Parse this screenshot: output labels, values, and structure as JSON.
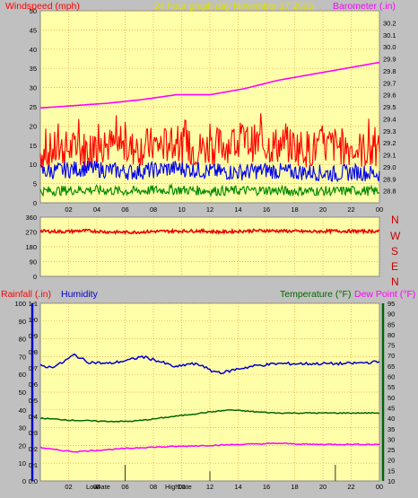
{
  "colors": {
    "background": "#c0c0c0",
    "plot_bg": "#ffffaa",
    "grid": "#e0a030",
    "windspeed": "#ff0000",
    "gust_red": "#ff0000",
    "wind_avg": "#0000ee",
    "wind_low": "#008800",
    "barometer": "#ff00ff",
    "title": "#e0e000",
    "humidity": "#0000cc",
    "temperature": "#006600",
    "dewpoint": "#ff00ff",
    "direction": "#ee0000"
  },
  "header": {
    "windspeed_label": "Windspeed (mph)",
    "title": "24 hour graph day   November 17 2025",
    "barometer_label": "Barometer (.in)"
  },
  "lower_header": {
    "rainfall_label": "Rainfall (.in)",
    "humidity_label": "Humidity",
    "temperature_label": "Temperature (°F)",
    "dewpoint_label": "Dew Point (°F)"
  },
  "x_axis_ticks": [
    "02",
    "04",
    "06",
    "08",
    "10",
    "12",
    "14",
    "16",
    "18",
    "20",
    "22",
    "00"
  ],
  "wind_dir_letters": [
    "N",
    "W",
    "S",
    "E",
    "N"
  ],
  "low_high_labels": {
    "low": "Low",
    "low_time": "Date",
    "high": "High",
    "high_time": "Date"
  },
  "chart_data": [
    {
      "type": "line",
      "name": "wind-and-barometer",
      "x_ticks": [
        "02",
        "04",
        "06",
        "08",
        "10",
        "12",
        "14",
        "16",
        "18",
        "20",
        "22",
        "00"
      ],
      "left_axis": {
        "label": "Windspeed (mph)",
        "ylim": [
          0,
          50
        ],
        "ticks": [
          0,
          5,
          10,
          15,
          20,
          25,
          30,
          35,
          40,
          45,
          50
        ]
      },
      "right_axis": {
        "label": "Barometer (.in)",
        "ylim": [
          28.7,
          30.3
        ],
        "ticks": [
          28.8,
          28.9,
          29.0,
          29.1,
          29.2,
          29.3,
          29.4,
          29.5,
          29.6,
          29.7,
          29.8,
          29.9,
          30.0,
          30.1,
          30.2
        ]
      },
      "series": [
        {
          "name": "Windspeed (mph)",
          "axis": "left",
          "style": "noisy",
          "values": [
            13,
            14,
            14,
            15,
            14,
            15,
            15,
            14,
            15,
            16,
            15,
            15,
            14,
            15,
            14,
            13
          ]
        },
        {
          "axis": "left",
          "style": "noisy",
          "values": [
            8,
            8.5,
            9,
            8.5,
            8,
            8.5,
            9,
            8.5,
            8,
            8,
            8.5,
            8,
            8,
            7.5,
            8,
            7.5
          ]
        },
        {
          "axis": "left",
          "style": "noisy",
          "values": [
            3,
            3.2,
            3.4,
            3.2,
            3,
            3.3,
            3.4,
            3.2,
            3.1,
            3.2,
            3.3,
            3,
            3.1,
            3,
            3.2,
            3
          ]
        },
        {
          "name": "Barometer (.in)",
          "axis": "right",
          "style": "smooth",
          "x_frac": [
            0.0,
            0.1,
            0.2,
            0.3,
            0.4,
            0.5,
            0.6,
            0.7,
            0.8,
            0.9,
            1.0
          ],
          "values": [
            29.49,
            29.51,
            29.53,
            29.56,
            29.6,
            29.6,
            29.65,
            29.72,
            29.77,
            29.82,
            29.87
          ]
        }
      ]
    },
    {
      "type": "scatter",
      "name": "wind-direction",
      "ylim": [
        0,
        360
      ],
      "ticks": [
        0,
        90,
        180,
        270,
        360
      ],
      "series": [
        {
          "style": "noisy",
          "values": [
            275,
            272,
            278,
            270,
            268,
            273,
            275,
            277,
            270,
            276,
            278,
            275,
            272,
            276,
            274,
            275
          ]
        }
      ]
    },
    {
      "type": "line",
      "name": "humidity-temperature-dewpoint",
      "x_ticks": [
        "02",
        "04",
        "06",
        "08",
        "10",
        "12",
        "14",
        "16",
        "18",
        "20",
        "22",
        "00"
      ],
      "humidity_axis": {
        "label": "Humidity",
        "ylim": [
          0,
          100
        ],
        "ticks": [
          0,
          10,
          20,
          30,
          40,
          50,
          60,
          70,
          80,
          90,
          100
        ]
      },
      "rainfall_axis": {
        "label": "Rainfall (.in)",
        "ylim": [
          0,
          1.1
        ],
        "ticks": [
          0,
          0.1,
          0.2,
          0.3,
          0.4,
          0.5,
          0.6,
          0.7,
          0.8,
          0.9,
          1.0,
          1.1
        ]
      },
      "temperature_axis": {
        "label": "Temperature (°F)",
        "ylim": [
          10,
          95
        ],
        "ticks": [
          10,
          15,
          20,
          25,
          30,
          35,
          40,
          45,
          50,
          55,
          60,
          65,
          70,
          75,
          80,
          85,
          90,
          95
        ]
      },
      "series": [
        {
          "name": "Humidity",
          "axis": "humidity",
          "x_frac": [
            0,
            0.03,
            0.06,
            0.1,
            0.14,
            0.2,
            0.26,
            0.3,
            0.34,
            0.4,
            0.44,
            0.48,
            0.5,
            0.54,
            0.58,
            0.64,
            0.7,
            0.8,
            0.9,
            1.0
          ],
          "values": [
            65,
            64,
            66,
            71,
            67,
            66,
            68,
            70,
            68,
            64,
            66,
            65,
            62,
            61,
            63,
            65,
            66,
            66,
            66,
            67
          ]
        },
        {
          "name": "Temperature (°F)",
          "axis": "temperature",
          "x_frac": [
            0,
            0.1,
            0.2,
            0.26,
            0.3,
            0.4,
            0.5,
            0.56,
            0.6,
            0.64,
            0.7,
            0.8,
            0.9,
            1.0
          ],
          "values": [
            40,
            39,
            38.5,
            38.5,
            39,
            41,
            43,
            44,
            43.5,
            43,
            42.5,
            42.5,
            42.5,
            42.5
          ]
        },
        {
          "name": "Dew Point (°F)",
          "axis": "temperature",
          "x_frac": [
            0,
            0.04,
            0.1,
            0.2,
            0.3,
            0.4,
            0.5,
            0.6,
            0.7,
            0.8,
            0.9,
            1.0
          ],
          "values": [
            26,
            25,
            24,
            25,
            26,
            26.5,
            27,
            27.5,
            28,
            27.5,
            27.5,
            27.5
          ]
        },
        {
          "name": "Rainfall (.in)",
          "axis": "rainfall",
          "style": "bars",
          "x_frac": [
            0.25,
            0.5,
            0.87
          ],
          "values": [
            0.1,
            0.06,
            0.1
          ]
        }
      ]
    }
  ]
}
